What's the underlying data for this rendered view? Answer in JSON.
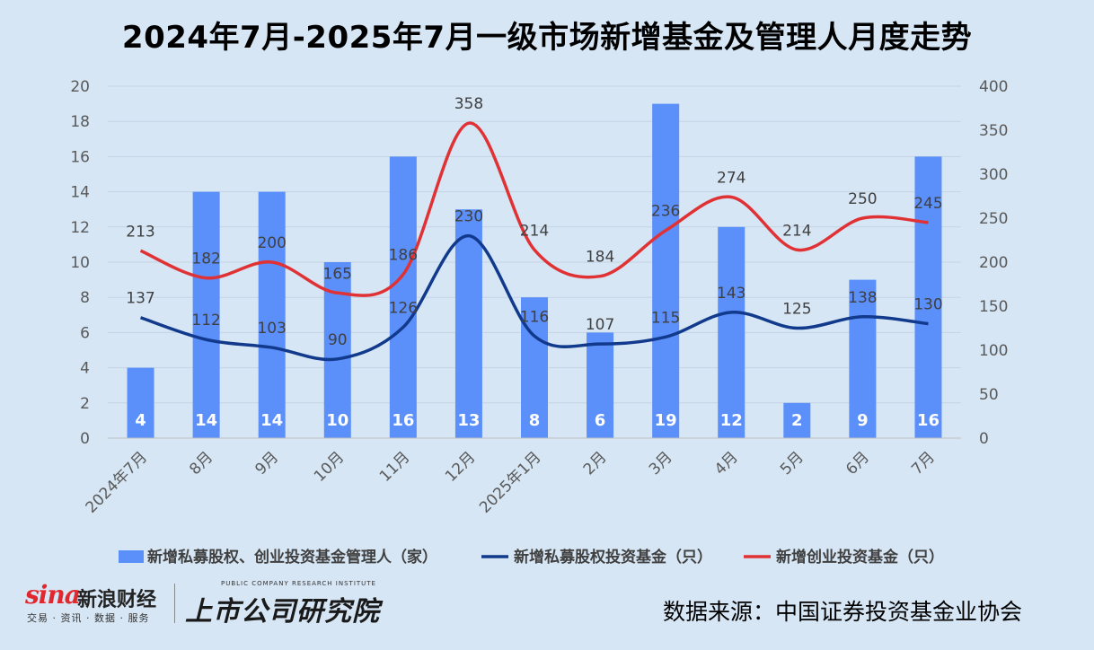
{
  "title": "2024年7月-2025年7月一级市场新增基金及管理人月度走势",
  "source": "数据来源：中国证券投资基金业协会",
  "logos": {
    "sina_word": "sina",
    "sina_cn": "新浪财经",
    "sina_sub": "交易 · 资讯 · 数据 · 服务",
    "ssyjy_en": "PUBLIC COMPANY RESEARCH INSTITUTE",
    "ssyjy_cn": "上市公司研究院"
  },
  "colors": {
    "bar": "#5b8ff9",
    "line_pe": "#123a8c",
    "line_vc": "#e03234",
    "background": "#d6e6f5"
  },
  "chart_data": {
    "type": "bar",
    "categories": [
      "2024年7月",
      "8月",
      "9月",
      "10月",
      "11月",
      "12月",
      "2025年1月",
      "2月",
      "3月",
      "4月",
      "5月",
      "6月",
      "7月"
    ],
    "series": [
      {
        "name": "新增私募股权、创业投资基金管理人（家）",
        "type": "bar",
        "axis": "left",
        "values": [
          4,
          14,
          14,
          10,
          16,
          13,
          8,
          6,
          19,
          12,
          2,
          9,
          16
        ]
      },
      {
        "name": "新增私募股权投资基金（只）",
        "type": "line",
        "axis": "right",
        "values": [
          137,
          112,
          103,
          90,
          126,
          230,
          116,
          107,
          115,
          143,
          125,
          138,
          130
        ]
      },
      {
        "name": "新增创业投资基金（只）",
        "type": "line",
        "axis": "right",
        "values": [
          213,
          182,
          200,
          165,
          186,
          358,
          214,
          184,
          236,
          274,
          214,
          250,
          245
        ]
      }
    ],
    "y_left": {
      "min": 0,
      "max": 20,
      "step": 2,
      "ticks": [
        "0",
        "2",
        "4",
        "6",
        "8",
        "10",
        "12",
        "14",
        "16",
        "18",
        "20"
      ]
    },
    "y_right": {
      "min": 0,
      "max": 400,
      "step": 50,
      "ticks": [
        "0",
        "50",
        "100",
        "150",
        "200",
        "250",
        "300",
        "350",
        "400"
      ]
    },
    "grid": true,
    "legend_position": "bottom"
  }
}
